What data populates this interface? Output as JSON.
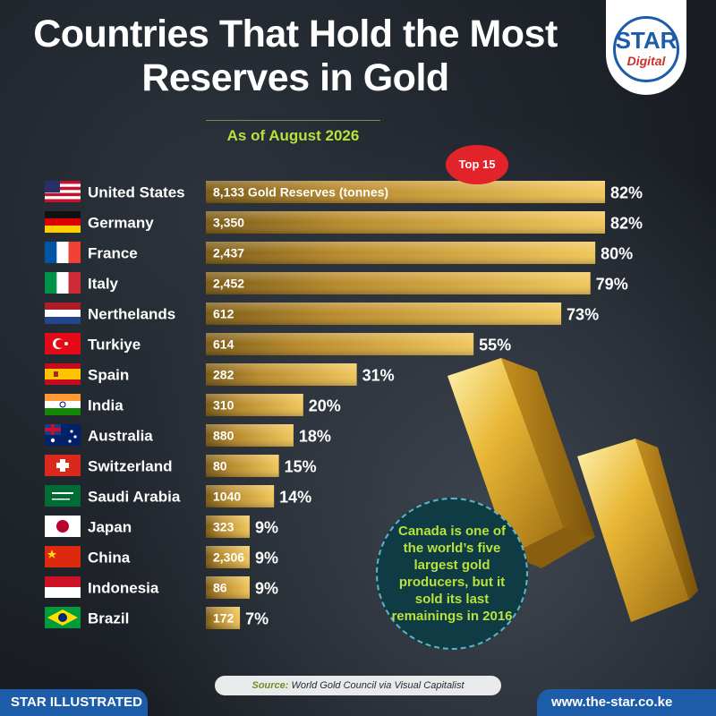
{
  "title_line1": "Countries That Hold the Most",
  "title_line2": "Reserves in Gold",
  "subtitle": "As of August 2026",
  "badge": "Top 15",
  "logo": {
    "name": "STAR",
    "sub": "Digital"
  },
  "callout": "Canada is one of the world’s five largest gold producers, but it sold its last remainings in 2016",
  "source_label": "Source:",
  "source_text": "World Gold Council via Visual Capitalist",
  "footer_left": "STAR ILLUSTRATED",
  "footer_right": "www.the-star.co.ke",
  "colors": {
    "accent_green": "#b9e23b",
    "brand_blue": "#1d5ca9",
    "badge_red": "#e3232a",
    "bar_gold": "#d9a93a"
  },
  "chart_data": {
    "type": "bar",
    "orientation": "horizontal",
    "title": "Countries That Hold the Most Reserves in Gold",
    "subtitle": "As of August 2026",
    "value_unit_note": "Gold Reserves (tonnes)",
    "categories": [
      "United States",
      "Germany",
      "France",
      "Italy",
      "Nerthelands",
      "Turkiye",
      "Spain",
      "India",
      "Australia",
      "Switzerland",
      "Saudi Arabia",
      "Japan",
      "China",
      "Indonesia",
      "Brazil"
    ],
    "flags": [
      "us-flag-icon",
      "de-flag-icon",
      "fr-flag-icon",
      "it-flag-icon",
      "nl-flag-icon",
      "tr-flag-icon",
      "es-flag-icon",
      "in-flag-icon",
      "au-flag-icon",
      "ch-flag-icon",
      "sa-flag-icon",
      "jp-flag-icon",
      "cn-flag-icon",
      "id-flag-icon",
      "br-flag-icon"
    ],
    "reserves_labels": [
      "8,133 Gold Reserves (tonnes)",
      "3,350",
      "2,437",
      "2,452",
      "612",
      "614",
      "282",
      "310",
      "880",
      "80",
      "1040",
      "323",
      "2,306",
      "86",
      "172"
    ],
    "percent_labels": [
      "82%",
      "82%",
      "80%",
      "79%",
      "73%",
      "55%",
      "31%",
      "20%",
      "18%",
      "15%",
      "14%",
      "9%",
      "9%",
      "9%",
      "7%"
    ],
    "values": [
      82,
      82,
      80,
      79,
      73,
      55,
      31,
      20,
      18,
      15,
      14,
      9,
      9,
      9,
      7
    ],
    "xlim": [
      0,
      100
    ]
  }
}
